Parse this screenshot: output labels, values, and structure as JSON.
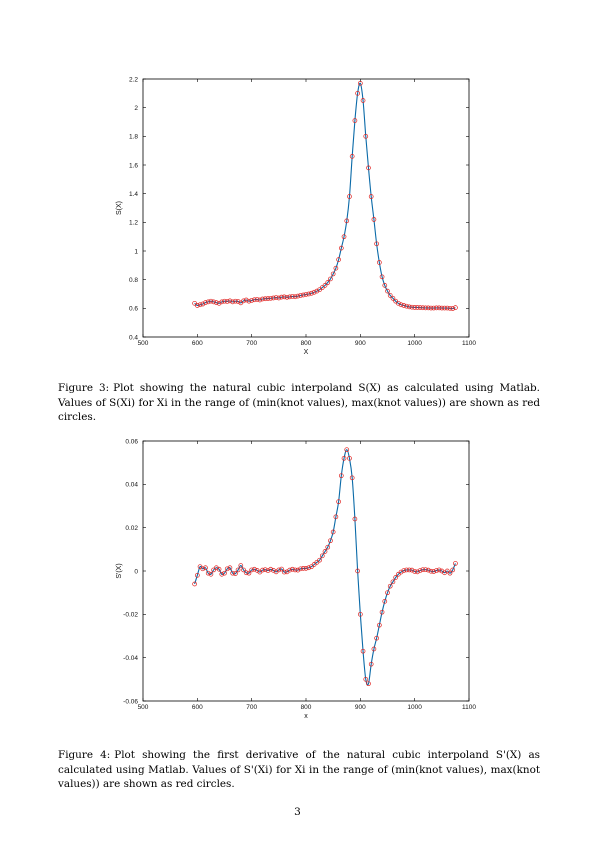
{
  "colors": {
    "curve": "#0a6aa8",
    "marker": "#e0201e",
    "frame": "#000000"
  },
  "chart_data": [
    {
      "type": "line",
      "title": "",
      "xlabel": "X",
      "ylabel": "S(X)",
      "xlim": [
        500,
        1100
      ],
      "ylim": [
        0.4,
        2.2
      ],
      "xticks": [
        500,
        600,
        700,
        800,
        900,
        1000,
        1100
      ],
      "yticks": [
        0.4,
        0.6,
        0.8,
        1,
        1.2,
        1.4,
        1.6,
        1.8,
        2,
        2.2
      ],
      "xtick_labels": [
        "500",
        "600",
        "700",
        "800",
        "900",
        "1000",
        "1100"
      ],
      "ytick_labels": [
        "0.4",
        "0.6",
        "0.8",
        "1",
        "1.2",
        "1.4",
        "1.6",
        "1.8",
        "2",
        "2.2"
      ],
      "series": [
        {
          "x": [
            595,
            600,
            605,
            610,
            615,
            620,
            625,
            630,
            635,
            640,
            645,
            650,
            655,
            660,
            665,
            670,
            675,
            680,
            685,
            690,
            695,
            700,
            705,
            710,
            715,
            720,
            725,
            730,
            735,
            740,
            745,
            750,
            755,
            760,
            765,
            770,
            775,
            780,
            785,
            790,
            795,
            800,
            805,
            810,
            815,
            820,
            825,
            830,
            835,
            840,
            845,
            850,
            855,
            860,
            865,
            870,
            875,
            880,
            885,
            890,
            895,
            900,
            905,
            910,
            915,
            920,
            925,
            930,
            935,
            940,
            945,
            950,
            955,
            960,
            965,
            970,
            975,
            980,
            985,
            990,
            995,
            1000,
            1005,
            1010,
            1015,
            1020,
            1025,
            1030,
            1035,
            1040,
            1045,
            1050,
            1055,
            1060,
            1065,
            1070,
            1075
          ],
          "y": [
            0.635,
            0.62,
            0.625,
            0.63,
            0.64,
            0.645,
            0.65,
            0.645,
            0.64,
            0.635,
            0.645,
            0.65,
            0.648,
            0.652,
            0.645,
            0.65,
            0.648,
            0.638,
            0.652,
            0.658,
            0.65,
            0.655,
            0.66,
            0.662,
            0.658,
            0.665,
            0.667,
            0.668,
            0.67,
            0.672,
            0.675,
            0.672,
            0.678,
            0.68,
            0.677,
            0.68,
            0.683,
            0.681,
            0.685,
            0.69,
            0.693,
            0.697,
            0.7,
            0.705,
            0.712,
            0.72,
            0.73,
            0.745,
            0.76,
            0.78,
            0.805,
            0.84,
            0.88,
            0.94,
            1.02,
            1.1,
            1.21,
            1.38,
            1.66,
            1.91,
            2.1,
            2.17,
            2.05,
            1.8,
            1.58,
            1.38,
            1.22,
            1.05,
            0.92,
            0.82,
            0.76,
            0.72,
            0.69,
            0.67,
            0.65,
            0.635,
            0.625,
            0.62,
            0.615,
            0.61,
            0.608,
            0.606,
            0.606,
            0.605,
            0.604,
            0.603,
            0.603,
            0.602,
            0.602,
            0.603,
            0.603,
            0.602,
            0.602,
            0.602,
            0.6,
            0.598,
            0.605
          ]
        }
      ]
    },
    {
      "type": "line",
      "title": "",
      "xlabel": "x",
      "ylabel": "S'(X)",
      "xlim": [
        500,
        1100
      ],
      "ylim": [
        -0.06,
        0.06
      ],
      "xticks": [
        500,
        600,
        700,
        800,
        900,
        1000,
        1100
      ],
      "yticks": [
        -0.06,
        -0.04,
        -0.02,
        0,
        0.02,
        0.04,
        0.06
      ],
      "xtick_labels": [
        "500",
        "600",
        "700",
        "800",
        "900",
        "1000",
        "1100"
      ],
      "ytick_labels": [
        "-0.06",
        "-0.04",
        "-0.02",
        "0",
        "0.02",
        "0.04",
        "0.06"
      ],
      "series": [
        {
          "x": [
            595,
            600,
            605,
            610,
            615,
            620,
            625,
            630,
            635,
            640,
            645,
            650,
            655,
            660,
            665,
            670,
            675,
            680,
            685,
            690,
            695,
            700,
            705,
            710,
            715,
            720,
            725,
            730,
            735,
            740,
            745,
            750,
            755,
            760,
            765,
            770,
            775,
            780,
            785,
            790,
            795,
            800,
            805,
            810,
            815,
            820,
            825,
            830,
            835,
            840,
            845,
            850,
            855,
            860,
            865,
            870,
            875,
            880,
            885,
            890,
            895,
            900,
            905,
            910,
            915,
            920,
            925,
            930,
            935,
            940,
            945,
            950,
            955,
            960,
            965,
            970,
            975,
            980,
            985,
            990,
            995,
            1000,
            1005,
            1010,
            1015,
            1020,
            1025,
            1030,
            1035,
            1040,
            1045,
            1050,
            1055,
            1060,
            1065,
            1070,
            1075
          ],
          "y": [
            -0.006,
            -0.002,
            0.002,
            0.001,
            0.0015,
            -0.001,
            -0.0015,
            0.0005,
            0.0015,
            0.0008,
            -0.0015,
            -0.001,
            0.001,
            0.0015,
            -0.001,
            -0.0012,
            0.0005,
            0.0025,
            0.0005,
            -0.0008,
            -0.001,
            0.0005,
            0.0008,
            0.0003,
            -0.0005,
            0.0004,
            0.0006,
            0.0002,
            0.0008,
            0.0003,
            -0.0004,
            0.0005,
            0.0009,
            -0.0005,
            -0.0004,
            0.0004,
            0.0008,
            0.0005,
            0.0004,
            0.001,
            0.0012,
            0.0012,
            0.0015,
            0.002,
            0.003,
            0.004,
            0.005,
            0.007,
            0.009,
            0.011,
            0.014,
            0.018,
            0.025,
            0.032,
            0.044,
            0.052,
            0.056,
            0.052,
            0.043,
            0.024,
            0.0,
            -0.02,
            -0.037,
            -0.05,
            -0.052,
            -0.043,
            -0.036,
            -0.031,
            -0.025,
            -0.019,
            -0.014,
            -0.01,
            -0.007,
            -0.005,
            -0.003,
            -0.0015,
            -0.0005,
            0.0002,
            0.0005,
            0.0005,
            0.0004,
            -0.0002,
            -0.0004,
            0.0002,
            0.0006,
            0.0006,
            0.0004,
            -0.0001,
            -0.0003,
            0.0002,
            0.0005,
            0.0,
            -0.0008,
            0.0,
            -0.001,
            0.0005,
            0.0035
          ]
        }
      ]
    }
  ],
  "captions": [
    {
      "label": "Figure 3:",
      "text": "Plot showing the natural cubic interpoland S(X) as calculated using Matlab. Values of S(Xi) for Xi in the range of (min(knot values), max(knot values)) are shown as red circles."
    },
    {
      "label": "Figure 4:",
      "text": "Plot showing the first derivative of the natural cubic interpoland S'(X) as calculated using Matlab. Values of S'(Xi) for Xi in the range of (min(knot values), max(knot values)) are shown as red circles."
    }
  ],
  "page_number": "3"
}
